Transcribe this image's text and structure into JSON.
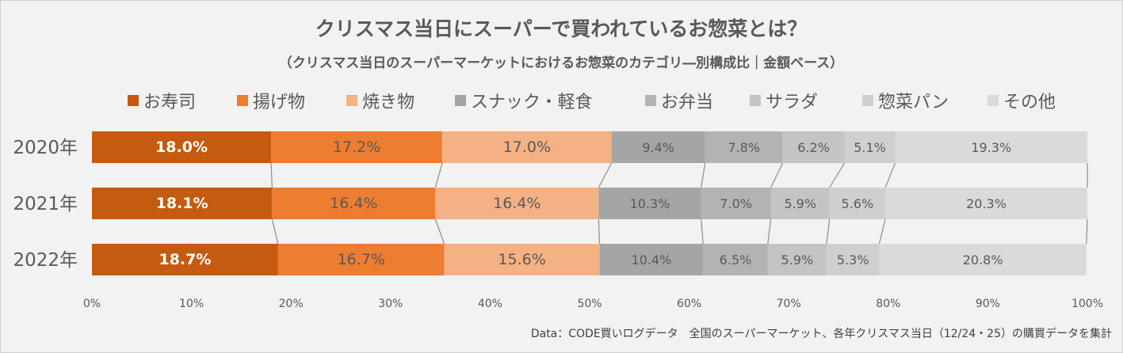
{
  "chart_data": {
    "type": "bar",
    "orientation": "horizontal",
    "stacked": true,
    "normalized": true,
    "title": "クリスマス当日にスーパーで買われているお惣菜とは？",
    "subtitle": "（クリスマス当日のスーパーマーケットにおけるお惣菜のカテゴリ―別構成比｜金額ベース）",
    "categories": [
      "2020年",
      "2021年",
      "2022年"
    ],
    "series": [
      {
        "name": "お寿司",
        "color": "#c55a11",
        "values": [
          18.0,
          18.1,
          18.7
        ],
        "labels": [
          "18.0%",
          "18.1%",
          "18.7%"
        ]
      },
      {
        "name": "揚げ物",
        "color": "#ed7d31",
        "values": [
          17.2,
          16.4,
          16.7
        ],
        "labels": [
          "17.2%",
          "16.4%",
          "16.7%"
        ]
      },
      {
        "name": "焼き物",
        "color": "#f4b183",
        "values": [
          17.0,
          16.4,
          15.6
        ],
        "labels": [
          "17.0%",
          "16.4%",
          "15.6%"
        ]
      },
      {
        "name": "スナック・軽食",
        "color": "#a5a5a5",
        "values": [
          9.4,
          10.3,
          10.4
        ],
        "labels": [
          "9.4%",
          "10.3%",
          "10.4%"
        ]
      },
      {
        "name": "お弁当",
        "color": "#b3b3b3",
        "values": [
          7.8,
          7.0,
          6.5
        ],
        "labels": [
          "7.8%",
          "7.0%",
          "6.5%"
        ]
      },
      {
        "name": "サラダ",
        "color": "#c4c4c4",
        "values": [
          6.2,
          5.9,
          5.9
        ],
        "labels": [
          "6.2%",
          "5.9%",
          "5.9%"
        ]
      },
      {
        "name": "惣菜パン",
        "color": "#cfcfcf",
        "values": [
          5.1,
          5.6,
          5.3
        ],
        "labels": [
          "5.1%",
          "5.6%",
          "5.3%"
        ]
      },
      {
        "name": "その他",
        "color": "#dadada",
        "values": [
          19.3,
          20.3,
          20.8
        ],
        "labels": [
          "19.3%",
          "20.3%",
          "20.8%"
        ]
      }
    ],
    "xlim": [
      0,
      100
    ],
    "xticks": [
      "0%",
      "10%",
      "20%",
      "30%",
      "40%",
      "50%",
      "60%",
      "70%",
      "80%",
      "90%",
      "100%"
    ],
    "legend_position": "top",
    "series_lines": true,
    "grid": false,
    "source_note": "Data：CODE買いログデータ　全国のスーパーマーケット、各年クリスマス当日（12/24・25）の購買データを集計"
  }
}
